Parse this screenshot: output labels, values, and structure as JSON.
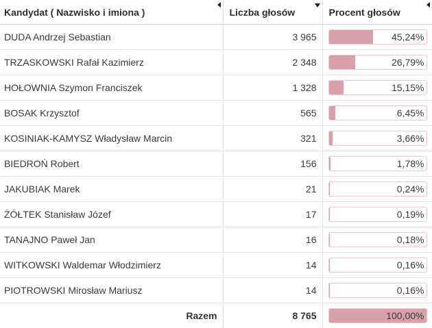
{
  "table": {
    "headers": {
      "candidate": "Kandydat ( Nazwisko i imiona )",
      "votes": "Liczba głosów",
      "percent": "Procent głosów"
    },
    "rows": [
      {
        "name": "DUDA Andrzej Sebastian",
        "votes": "3 965",
        "percent": "45,24%",
        "fraction": 0.4524
      },
      {
        "name": "TRZASKOWSKI Rafał Kazimierz",
        "votes": "2 348",
        "percent": "26,79%",
        "fraction": 0.2679
      },
      {
        "name": "HOŁOWNIA Szymon Franciszek",
        "votes": "1 328",
        "percent": "15,15%",
        "fraction": 0.1515
      },
      {
        "name": "BOSAK Krzysztof",
        "votes": "565",
        "percent": "6,45%",
        "fraction": 0.0645
      },
      {
        "name": "KOSINIAK-KAMYSZ Władysław Marcin",
        "votes": "321",
        "percent": "3,66%",
        "fraction": 0.0366
      },
      {
        "name": "BIEDROŃ Robert",
        "votes": "156",
        "percent": "1,78%",
        "fraction": 0.0178
      },
      {
        "name": "JAKUBIAK Marek",
        "votes": "21",
        "percent": "0,24%",
        "fraction": 0.0024
      },
      {
        "name": "ŻÓŁTEK Stanisław Józef",
        "votes": "17",
        "percent": "0,19%",
        "fraction": 0.0019
      },
      {
        "name": "TANAJNO Paweł Jan",
        "votes": "16",
        "percent": "0,18%",
        "fraction": 0.0018
      },
      {
        "name": "WITKOWSKI Waldemar Włodzimierz",
        "votes": "14",
        "percent": "0,16%",
        "fraction": 0.0016
      },
      {
        "name": "PIOTROWSKI Mirosław Mariusz",
        "votes": "14",
        "percent": "0,16%",
        "fraction": 0.0016
      }
    ],
    "total": {
      "label": "Razem",
      "votes": "8 765",
      "percent": "100,00%",
      "fraction": 1.0
    }
  },
  "colors": {
    "bar_fill": "#d99fab",
    "bar_border": "#e7c9d0"
  },
  "icons": {
    "sort_candidate": "sort-left-icon",
    "sort_votes": "sort-desc-icon",
    "sort_percent": "sort-left-icon"
  }
}
